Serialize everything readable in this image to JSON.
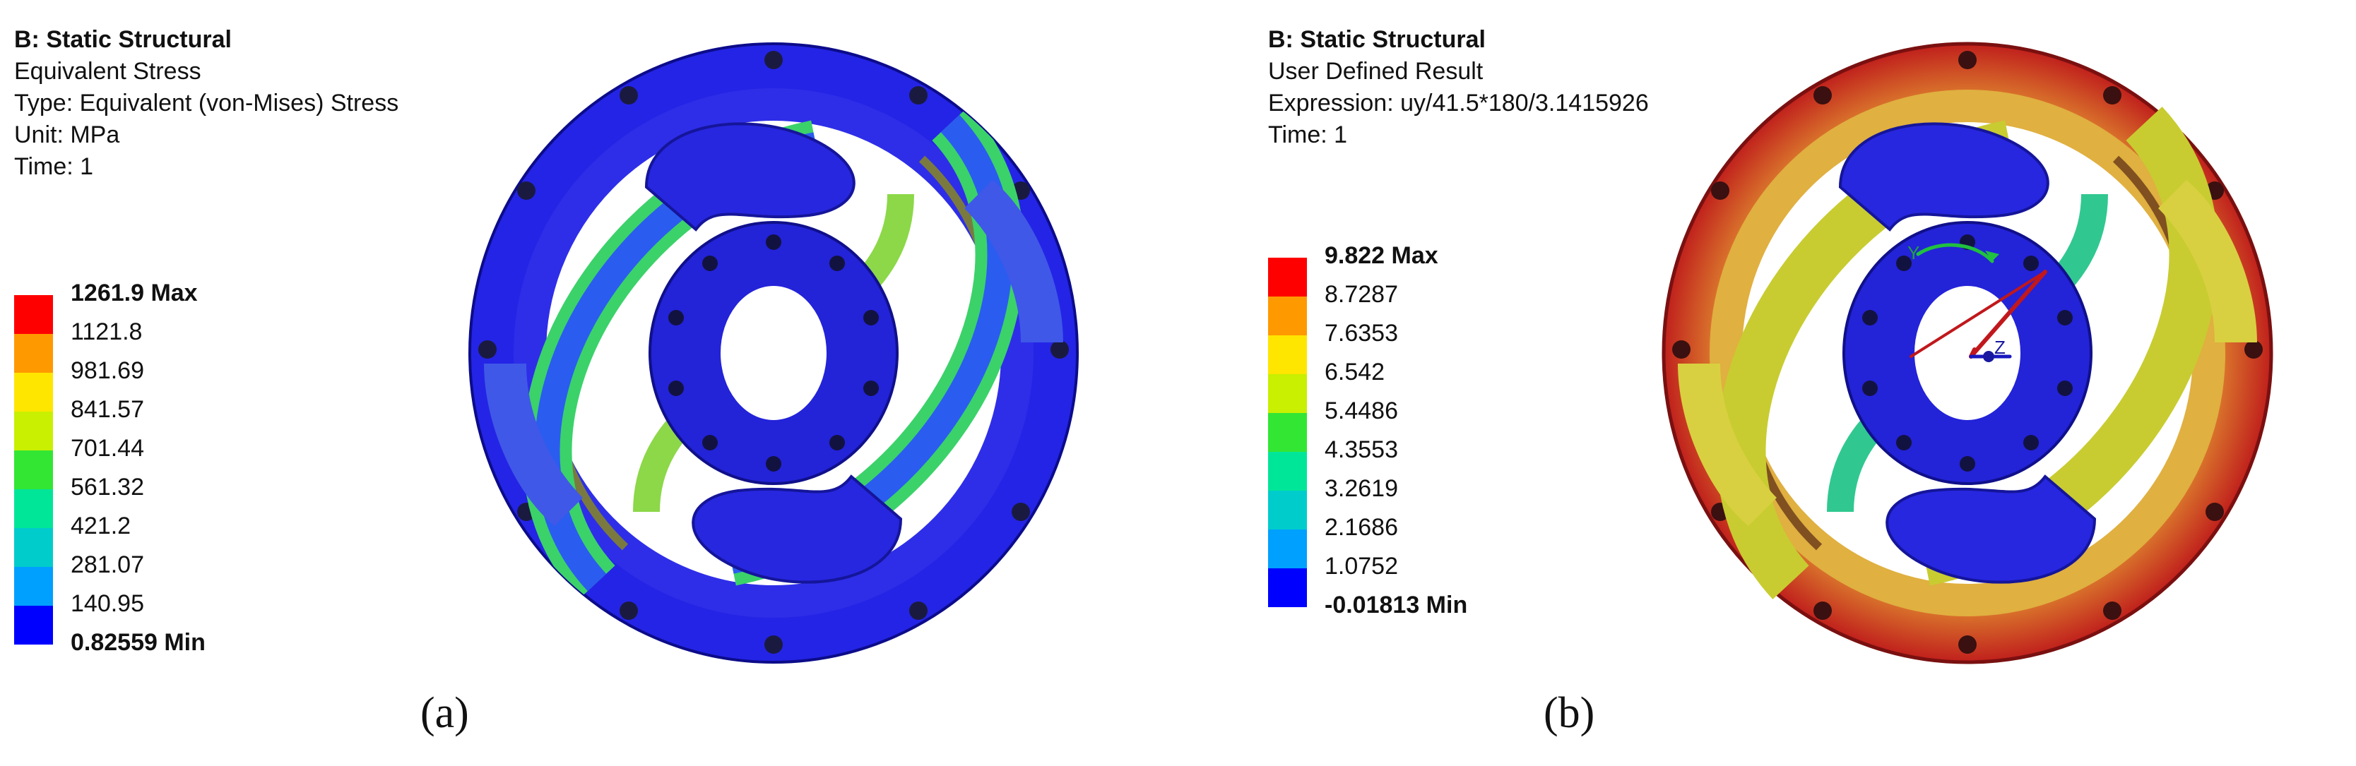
{
  "panels": [
    {
      "id": "a",
      "info": {
        "title": "B: Static Structural",
        "lines": [
          "Equivalent Stress",
          "Type: Equivalent (von-Mises) Stress",
          "Unit: MPa",
          "Time: 1"
        ]
      },
      "legend": {
        "labels": [
          "1261.9 Max",
          "1121.8",
          "981.69",
          "841.57",
          "701.44",
          "561.32",
          "421.2",
          "281.07",
          "140.95",
          "0.82559 Min"
        ],
        "colors": [
          "#ff0000",
          "#ff9900",
          "#ffe600",
          "#c8f000",
          "#33e633",
          "#00e699",
          "#00cccc",
          "#00a0ff",
          "#0000ff"
        ]
      },
      "caption": "(a)"
    },
    {
      "id": "b",
      "info": {
        "title": "B: Static Structural",
        "lines": [
          "User Defined Result",
          "Expression: uy/41.5*180/3.1415926",
          "Time: 1"
        ]
      },
      "legend": {
        "labels": [
          "9.822 Max",
          "8.7287",
          "7.6353",
          "6.542",
          "5.4486",
          "4.3553",
          "3.2619",
          "2.1686",
          "1.0752",
          "-0.01813 Min"
        ],
        "colors": [
          "#ff0000",
          "#ff9900",
          "#ffe600",
          "#c8f000",
          "#33e633",
          "#00e699",
          "#00cccc",
          "#00a0ff",
          "#0000ff"
        ]
      },
      "axis_labels": [
        "Y",
        "Z"
      ],
      "caption": "(b)"
    }
  ]
}
